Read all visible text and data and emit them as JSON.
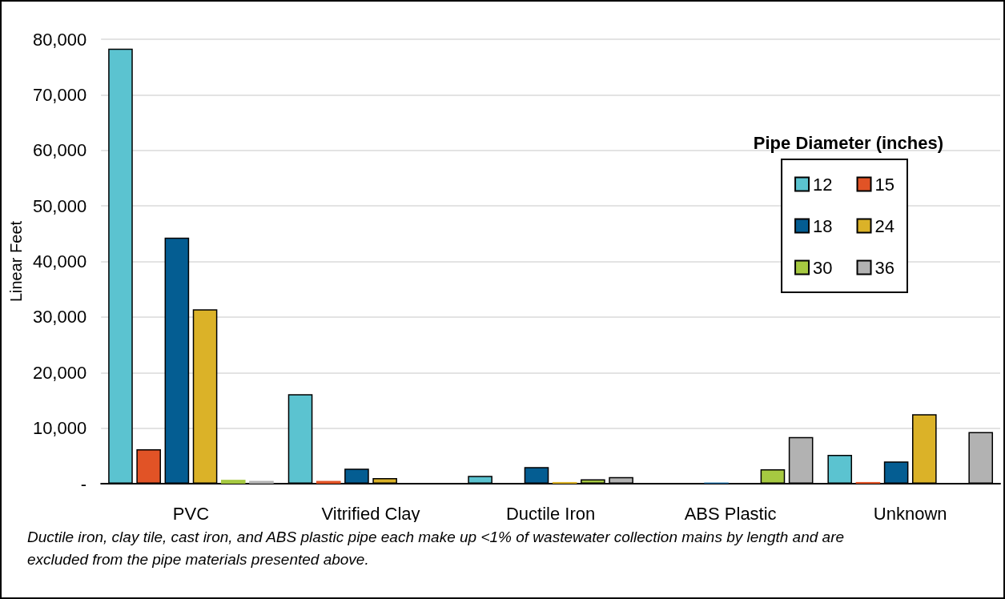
{
  "chart_data": {
    "type": "bar",
    "categories": [
      "PVC",
      "Vitrified Clay",
      "Ductile Iron",
      "ABS Plastic",
      "Unknown"
    ],
    "series": [
      {
        "name": "12",
        "color": "#5bc3d0",
        "values": [
          78300,
          16100,
          1400,
          null,
          5200
        ]
      },
      {
        "name": "15",
        "color": "#e15326",
        "values": [
          6200,
          500,
          null,
          null,
          300
        ]
      },
      {
        "name": "18",
        "color": "#045d92",
        "values": [
          44300,
          2700,
          3000,
          200,
          4000
        ]
      },
      {
        "name": "24",
        "color": "#dbb228",
        "values": [
          31400,
          1000,
          300,
          null,
          12500
        ]
      },
      {
        "name": "30",
        "color": "#a6c941",
        "values": [
          700,
          null,
          800,
          2600,
          null
        ]
      },
      {
        "name": "36",
        "color": "#b2b2b2",
        "values": [
          500,
          null,
          1200,
          8400,
          9300
        ]
      }
    ],
    "ylabel": "Linear Feet",
    "legend_title": "Pipe Diameter (inches)",
    "legend": "top right",
    "ylim": [
      0,
      80000
    ],
    "yticks": [
      {
        "value": 0,
        "label": "-"
      },
      {
        "value": 10000,
        "label": "10,000"
      },
      {
        "value": 20000,
        "label": "20,000"
      },
      {
        "value": 30000,
        "label": "30,000"
      },
      {
        "value": 40000,
        "label": "40,000"
      },
      {
        "value": 50000,
        "label": "50,000"
      },
      {
        "value": 60000,
        "label": "60,000"
      },
      {
        "value": 70000,
        "label": "70,000"
      },
      {
        "value": 80000,
        "label": "80,000"
      }
    ],
    "grid": "y",
    "annotations": [
      "Ductile iron, clay tile, cast iron, and ABS plastic pipe each make up <1% of wastewater collection mains by length and are excluded from the pipe materials presented above."
    ]
  }
}
